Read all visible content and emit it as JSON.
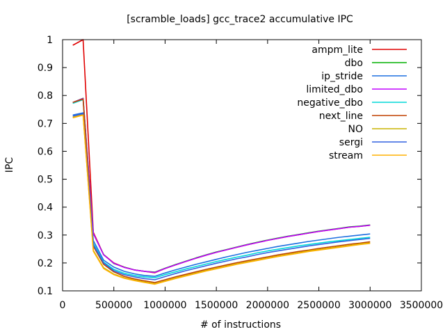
{
  "chart_data": {
    "type": "line",
    "title": "[scramble_loads] gcc_trace2 accumulative IPC",
    "xlabel": "# of instructions",
    "ylabel": "IPC",
    "xlim": [
      0,
      3500000
    ],
    "ylim": [
      0.1,
      1.0
    ],
    "xticks": [
      0,
      500000,
      1000000,
      1500000,
      2000000,
      2500000,
      3000000,
      3500000
    ],
    "xtick_labels": [
      "0",
      "500000",
      "1000000",
      "1500000",
      "2000000",
      "2500000",
      "3000000",
      "3500000"
    ],
    "yticks": [
      0.1,
      0.2,
      0.3,
      0.4,
      0.5,
      0.6,
      0.7,
      0.8,
      0.9,
      1.0
    ],
    "ytick_labels": [
      "0.1",
      "0.2",
      "0.3",
      "0.4",
      "0.5",
      "0.6",
      "0.7",
      "0.8",
      "0.9",
      "1"
    ],
    "grid": false,
    "legend_position": "top-right",
    "x": [
      100000,
      200000,
      300000,
      400000,
      500000,
      600000,
      700000,
      800000,
      900000,
      1000000,
      1100000,
      1200000,
      1300000,
      1400000,
      1500000,
      1600000,
      1700000,
      1800000,
      1900000,
      2000000,
      2100000,
      2200000,
      2300000,
      2400000,
      2500000,
      2600000,
      2700000,
      2800000,
      2900000,
      3000000
    ],
    "series": [
      {
        "name": "ampm_lite",
        "color": "#e00000",
        "values": [
          0.98,
          1.0,
          0.31,
          0.23,
          0.2,
          0.185,
          0.175,
          0.17,
          0.165,
          0.18,
          0.193,
          0.205,
          0.217,
          0.228,
          0.238,
          0.247,
          0.256,
          0.265,
          0.273,
          0.281,
          0.288,
          0.295,
          0.301,
          0.307,
          0.313,
          0.318,
          0.323,
          0.328,
          0.331,
          0.335
        ]
      },
      {
        "name": "dbo",
        "color": "#00b000",
        "values": [
          0.775,
          0.79,
          0.305,
          0.23,
          0.198,
          0.185,
          0.175,
          0.17,
          0.167,
          0.181,
          0.194,
          0.206,
          0.218,
          0.229,
          0.239,
          0.248,
          0.257,
          0.266,
          0.274,
          0.282,
          0.289,
          0.296,
          0.302,
          0.308,
          0.314,
          0.319,
          0.324,
          0.329,
          0.332,
          0.336
        ]
      },
      {
        "name": "ip_stride",
        "color": "#1c6fe0",
        "values": [
          0.73,
          0.738,
          0.28,
          0.21,
          0.185,
          0.17,
          0.161,
          0.155,
          0.152,
          0.164,
          0.175,
          0.185,
          0.195,
          0.204,
          0.213,
          0.222,
          0.23,
          0.238,
          0.245,
          0.252,
          0.259,
          0.265,
          0.271,
          0.277,
          0.282,
          0.287,
          0.292,
          0.296,
          0.3,
          0.304
        ]
      },
      {
        "name": "limited_dbo",
        "color": "#c000ff",
        "values": [
          0.775,
          0.789,
          0.306,
          0.229,
          0.199,
          0.184,
          0.175,
          0.17,
          0.166,
          0.18,
          0.193,
          0.205,
          0.217,
          0.228,
          0.238,
          0.247,
          0.256,
          0.265,
          0.273,
          0.281,
          0.288,
          0.295,
          0.301,
          0.307,
          0.313,
          0.318,
          0.323,
          0.328,
          0.331,
          0.335
        ]
      },
      {
        "name": "negative_dbo",
        "color": "#00d8d8",
        "values": [
          0.772,
          0.785,
          0.27,
          0.203,
          0.177,
          0.163,
          0.155,
          0.15,
          0.147,
          0.158,
          0.168,
          0.178,
          0.187,
          0.196,
          0.205,
          0.213,
          0.221,
          0.228,
          0.236,
          0.243,
          0.249,
          0.255,
          0.261,
          0.266,
          0.271,
          0.276,
          0.28,
          0.284,
          0.288,
          0.292
        ]
      },
      {
        "name": "next_line",
        "color": "#c04000",
        "values": [
          0.775,
          0.787,
          0.26,
          0.195,
          0.168,
          0.152,
          0.143,
          0.136,
          0.13,
          0.14,
          0.15,
          0.159,
          0.168,
          0.177,
          0.185,
          0.193,
          0.201,
          0.208,
          0.215,
          0.222,
          0.229,
          0.235,
          0.241,
          0.246,
          0.252,
          0.257,
          0.262,
          0.267,
          0.271,
          0.276
        ]
      },
      {
        "name": "NO",
        "color": "#c8b400",
        "values": [
          0.722,
          0.732,
          0.245,
          0.183,
          0.16,
          0.147,
          0.139,
          0.132,
          0.126,
          0.136,
          0.146,
          0.155,
          0.164,
          0.173,
          0.181,
          0.189,
          0.197,
          0.204,
          0.211,
          0.218,
          0.225,
          0.231,
          0.237,
          0.243,
          0.248,
          0.253,
          0.258,
          0.263,
          0.268,
          0.272
        ]
      },
      {
        "name": "sergi",
        "color": "#3060e0",
        "values": [
          0.726,
          0.735,
          0.265,
          0.2,
          0.172,
          0.158,
          0.15,
          0.144,
          0.14,
          0.151,
          0.162,
          0.172,
          0.181,
          0.19,
          0.199,
          0.207,
          0.215,
          0.222,
          0.23,
          0.237,
          0.243,
          0.249,
          0.255,
          0.261,
          0.266,
          0.271,
          0.276,
          0.28,
          0.284,
          0.288
        ]
      },
      {
        "name": "stream",
        "color": "#ffb000",
        "values": [
          0.72,
          0.73,
          0.242,
          0.18,
          0.158,
          0.145,
          0.137,
          0.13,
          0.124,
          0.134,
          0.144,
          0.153,
          0.162,
          0.171,
          0.179,
          0.187,
          0.195,
          0.202,
          0.209,
          0.216,
          0.223,
          0.229,
          0.235,
          0.241,
          0.246,
          0.251,
          0.256,
          0.261,
          0.266,
          0.27
        ]
      }
    ]
  }
}
